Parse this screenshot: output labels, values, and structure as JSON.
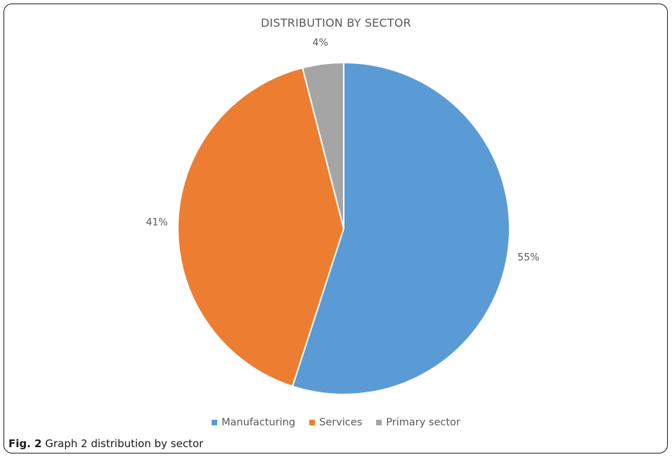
{
  "chart_data": {
    "type": "pie",
    "title": "DISTRIBUTION BY SECTOR",
    "categories": [
      "Manufacturing",
      "Services",
      "Primary sector"
    ],
    "values": [
      55,
      41,
      4
    ],
    "labels": [
      "55%",
      "41%",
      "4%"
    ],
    "colors": [
      "#5b9bd5",
      "#ed7d31",
      "#a5a5a5"
    ],
    "legend_position": "bottom"
  },
  "caption": {
    "label": "Fig. 2",
    "text": "Graph 2 distribution by sector"
  }
}
